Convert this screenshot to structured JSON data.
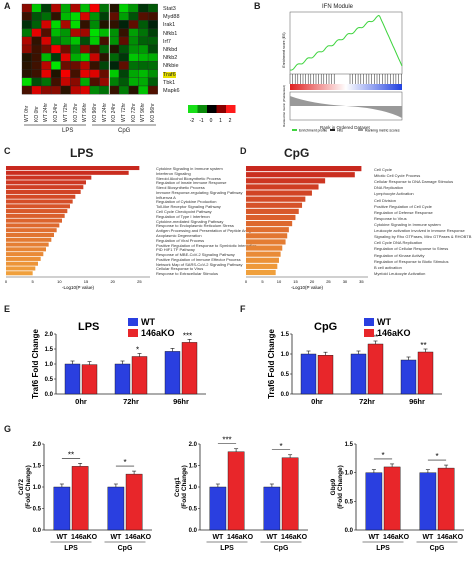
{
  "panels": {
    "A": {
      "letter": "A",
      "genes": [
        "Stat3",
        "Myd88",
        "Irak1",
        "Nfkb1",
        "Irf7",
        "Nfkbd",
        "Nfkb2",
        "Nfkbie",
        "Traf6",
        "Tbk1",
        "Mapk6"
      ],
      "highlight_gene": "Traf6",
      "highlight_color": "#e8e000",
      "conditions": [
        "WT 0hr",
        "KO 0hr",
        "WT 24hr",
        "KO 24hr",
        "WT 72hr",
        "KO 72hr",
        "WT 96hr",
        "KO 96hr",
        "WT 24hr",
        "KO 24hr",
        "WT 72hr",
        "KO 72hr",
        "WT 96hr",
        "KO 96hr"
      ],
      "groups": [
        "LPS",
        "CpG"
      ],
      "legend_ticks": [
        "-2",
        "-1",
        "0",
        "1",
        "2"
      ]
    },
    "B": {
      "letter": "B",
      "title": "IFN Module",
      "legend": [
        "Enrichment profile",
        "Hits",
        "Ranking metric scores"
      ],
      "ylabel_top": "Enrichment score (ES)",
      "ylabel_bottom": "Ranked list metric (PreRanked)",
      "xlabel": "Rank in Ordered Dataset"
    },
    "C": {
      "letter": "C",
      "title": "LPS",
      "terms": [
        "Cytokine Signaling in Immune system",
        "Interferon Signaling",
        "Steroid Alcohol Biosynthetic Process",
        "Regulation of Innate Immune Response",
        "Sterol Biosynthetic Process",
        "Immune Response-regulating Signaling Pathway",
        "Influenza A",
        "Regulation of Cytokine Production",
        "Toll-like Receptor Signaling Pathway",
        "Cell Cycle Checkpoint Pathway",
        "Regulation of Type I Interferon",
        "Cytokine-mediated Signaling Pathway",
        "Response to Endoplasmic Reticulum Stress",
        "Antigen Processing and Presentation of Peptide Antigen",
        "Axoplasmic Degeneration",
        "Regulation of Viral Process",
        "Positive Regulation of Response to Symbiotic Interaction",
        "PID HIF1 TF Pathway",
        "Response of MBE-CoV-2 Signaling Pathway",
        "Positive Regulation of Immune Effector Process",
        "Network Map of SARS-CoV-2 Signaling Pathway",
        "Cellular Response to Virus",
        "Response to Extracellular Stimulus"
      ],
      "xlabel": "-Log10(P value)",
      "ticks": [
        "0",
        "5",
        "10",
        "15",
        "20",
        "25"
      ]
    },
    "D": {
      "letter": "D",
      "title": "CpG",
      "terms": [
        "Cell Cycle",
        "Mitotic Cell Cycle Process",
        "Cellular Response to DNA Damage Stimulus",
        "DNA Replication",
        "Lymphocyte Activation",
        "Cell Division",
        "Positive Regulation of Cell Cycle",
        "Regulation of Defense Response",
        "Response to Virus",
        "Cytokine Signaling in Immune system",
        "Leukocyte activation involved in immune Response",
        "Signaling by Rho GTPases, Miro GTPases & RHOBTB",
        "Cell Cycle DNA Replication",
        "Regulation of Cellular Response to Stress",
        "Regulation of Kinase Activity",
        "Regulation of Response to Biotic Stimulus",
        "B cell activation",
        "Myeloid Leukocyte Activation"
      ],
      "xlabel": "-Log10(P value)",
      "ticks": [
        "0",
        "5",
        "10",
        "15",
        "20",
        "25",
        "30",
        "35"
      ]
    },
    "E": {
      "letter": "E",
      "title": "LPS",
      "ylabel": "Traf6 Fold Change",
      "categories": [
        "0hr",
        "72hr",
        "96hr"
      ],
      "yticks": [
        "0.0",
        "0.5",
        "1.0",
        "1.5",
        "2.0"
      ],
      "significance": [
        "",
        "*",
        "***"
      ]
    },
    "F": {
      "letter": "F",
      "title": "CpG",
      "ylabel": "Traf6 Fold Change",
      "categories": [
        "0hr",
        "72hr",
        "96hr"
      ],
      "yticks": [
        "0.0",
        "0.5",
        "1.0",
        "1.5"
      ],
      "significance": [
        "",
        "***",
        "**"
      ]
    },
    "G": {
      "letter": "G",
      "plots": [
        {
          "ylabel": "Cd72\n(Fold Change)",
          "yticks": [
            "0.0",
            "0.5",
            "1.0",
            "1.5",
            "2.0"
          ],
          "sig": [
            "**",
            "*"
          ]
        },
        {
          "ylabel": "Ccng1\n(Fold Change)",
          "yticks": [
            "0.0",
            "0.5",
            "1.0",
            "1.5",
            "2.0"
          ],
          "sig": [
            "***",
            "*"
          ]
        },
        {
          "ylabel": "Gbp9\n(Fold Change)",
          "yticks": [
            "0.0",
            "0.5",
            "1.0",
            "1.5"
          ],
          "sig": [
            "*",
            "*"
          ]
        }
      ],
      "xlabels": [
        "WT",
        "146aKO",
        "WT",
        "146aKO"
      ],
      "groups": [
        "LPS",
        "CpG"
      ]
    }
  },
  "legend_series": [
    "WT",
    "146aKO"
  ],
  "colors": {
    "wt": "#2a3fe0",
    "ko": "#e8262a",
    "heat_red": "#e00000",
    "heat_green": "#2fd22f"
  },
  "chart_data": [
    {
      "type": "bar",
      "title": "LPS",
      "ylabel": "Traf6 Fold Change",
      "categories": [
        "0hr",
        "72hr",
        "96hr"
      ],
      "series": [
        {
          "name": "WT",
          "values": [
            1.0,
            1.0,
            1.42
          ]
        },
        {
          "name": "146aKO",
          "values": [
            0.98,
            1.25,
            1.72
          ]
        }
      ],
      "ylim": [
        0,
        2.0
      ]
    },
    {
      "type": "bar",
      "title": "CpG",
      "ylabel": "Traf6 Fold Change",
      "categories": [
        "0hr",
        "72hr",
        "96hr"
      ],
      "series": [
        {
          "name": "WT",
          "values": [
            1.0,
            1.0,
            0.85
          ]
        },
        {
          "name": "146aKO",
          "values": [
            0.97,
            1.25,
            1.05
          ]
        }
      ],
      "ylim": [
        0,
        1.5
      ]
    },
    {
      "type": "bar",
      "ylabel": "Cd72 (Fold Change)",
      "categories": [
        "LPS",
        "CpG"
      ],
      "series": [
        {
          "name": "WT",
          "values": [
            1.0,
            1.0
          ]
        },
        {
          "name": "146aKO",
          "values": [
            1.48,
            1.3
          ]
        }
      ],
      "ylim": [
        0,
        2.0
      ]
    },
    {
      "type": "bar",
      "ylabel": "Ccng1 (Fold Change)",
      "categories": [
        "LPS",
        "CpG"
      ],
      "series": [
        {
          "name": "WT",
          "values": [
            1.0,
            1.0
          ]
        },
        {
          "name": "146aKO",
          "values": [
            1.82,
            1.68
          ]
        }
      ],
      "ylim": [
        0,
        2.0
      ]
    },
    {
      "type": "bar",
      "ylabel": "Gbp9 (Fold Change)",
      "categories": [
        "LPS",
        "CpG"
      ],
      "series": [
        {
          "name": "WT",
          "values": [
            1.0,
            1.0
          ]
        },
        {
          "name": "146aKO",
          "values": [
            1.1,
            1.08
          ]
        }
      ],
      "ylim": [
        0,
        1.5
      ]
    },
    {
      "type": "bar",
      "title": "LPS",
      "xlabel": "-Log10(P value)",
      "values": [
        25,
        23,
        16,
        15,
        14.5,
        14,
        13,
        12.5,
        12,
        11.5,
        11,
        10.5,
        10,
        9.5,
        9,
        8.5,
        8,
        7.5,
        7,
        6.5,
        6,
        5.5,
        5
      ]
    },
    {
      "type": "bar",
      "title": "CpG",
      "xlabel": "-Log10(P value)",
      "values": [
        35,
        33,
        24,
        22,
        20,
        18,
        17,
        16,
        15,
        14,
        13,
        12.5,
        12,
        11,
        10.5,
        10,
        9.5,
        9
      ]
    }
  ]
}
